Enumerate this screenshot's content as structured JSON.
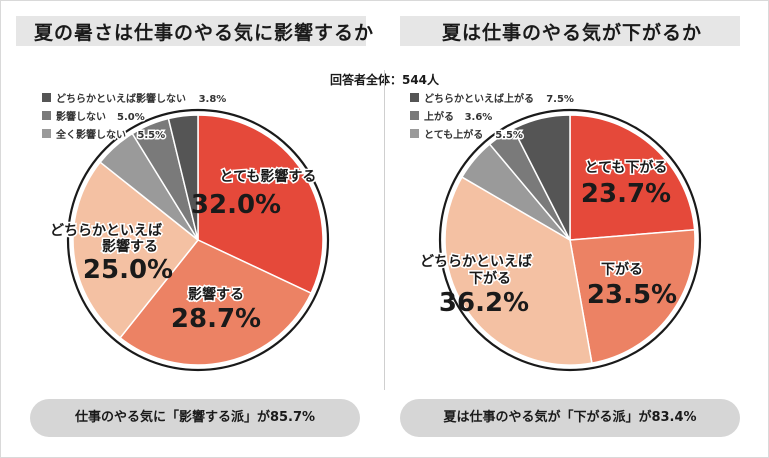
{
  "respondents": "回答者全体：544人",
  "colors": {
    "dark": "#555555",
    "mid": "#7a7a7a",
    "light": "#9a9a9a",
    "red": "#e5493a",
    "salmon": "#ec8264",
    "peach": "#f4c1a3"
  },
  "left": {
    "title": "夏の暑さは仕事のやる気に影響するか",
    "footer": "仕事のやる気に「影響する派」が85.7%"
  },
  "right": {
    "title": "夏は仕事のやる気が下がるか",
    "footer": "夏は仕事のやる気が「下がる派」が83.4%"
  },
  "chart_data": [
    {
      "type": "pie",
      "title": "夏の暑さは仕事のやる気に影響するか",
      "slices": [
        {
          "label": "とても影響する",
          "value": 32.0,
          "display": "32.0%",
          "color": "#e5493a"
        },
        {
          "label": "影響する",
          "value": 28.7,
          "display": "28.7%",
          "color": "#ec8264"
        },
        {
          "label": "どちらかといえば影響する",
          "value": 25.0,
          "display": "25.0%",
          "color": "#f4c1a3"
        },
        {
          "label": "全く影響しない",
          "value": 5.5,
          "display": "5.5%",
          "color": "#9a9a9a"
        },
        {
          "label": "影響しない",
          "value": 5.0,
          "display": "5.0%",
          "color": "#7a7a7a"
        },
        {
          "label": "どちらかといえば影響しない",
          "value": 3.8,
          "display": "3.8%",
          "color": "#555555"
        }
      ]
    },
    {
      "type": "pie",
      "title": "夏は仕事のやる気が下がるか",
      "slices": [
        {
          "label": "とても下がる",
          "value": 23.7,
          "display": "23.7%",
          "color": "#e5493a"
        },
        {
          "label": "下がる",
          "value": 23.5,
          "display": "23.5%",
          "color": "#ec8264"
        },
        {
          "label": "どちらかといえば下がる",
          "value": 36.2,
          "display": "36.2%",
          "color": "#f4c1a3"
        },
        {
          "label": "とても上がる",
          "value": 5.5,
          "display": "5.5%",
          "color": "#9a9a9a"
        },
        {
          "label": "上がる",
          "value": 3.6,
          "display": "3.6%",
          "color": "#7a7a7a"
        },
        {
          "label": "どちらかといえば上がる",
          "value": 7.5,
          "display": "7.5%",
          "color": "#555555"
        }
      ]
    }
  ]
}
